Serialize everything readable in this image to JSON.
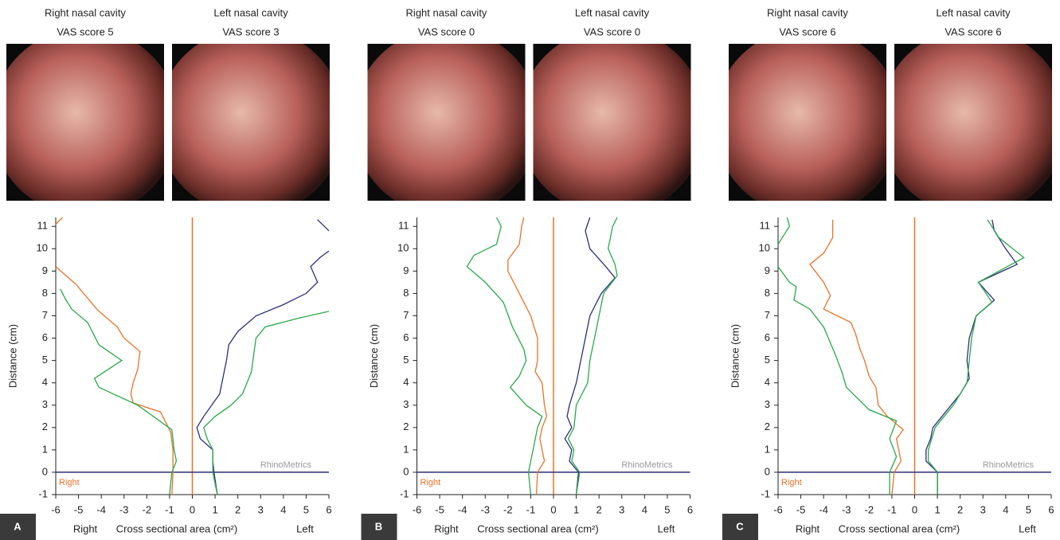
{
  "panels": [
    {
      "label": "A",
      "images": [
        [
          "Right nasal cavity",
          "VAS score 5"
        ],
        [
          "Left nasal cavity",
          "VAS score 3"
        ]
      ]
    },
    {
      "label": "B",
      "images": [
        [
          "Right nasal cavity",
          "VAS score 0"
        ],
        [
          "Left nasal cavity",
          "VAS score 0"
        ]
      ]
    },
    {
      "label": "C",
      "images": [
        [
          "Right nasal cavity",
          "VAS score 6"
        ],
        [
          "Left nasal cavity",
          "VAS score 6"
        ]
      ]
    }
  ],
  "chart_data": [
    {
      "type": "line",
      "ylabel": "Distance (cm)",
      "xlabel": "Cross sectional area (cm²)",
      "xlabel_left": "Right",
      "xlabel_right": "Left",
      "annotations": [
        "Right",
        "RhinoMetrics"
      ],
      "xlim": [
        -6,
        6
      ],
      "ylim": [
        -1,
        11.4
      ],
      "xticks": [
        -6,
        -5,
        -4,
        -3,
        -2,
        -1,
        0,
        1,
        2,
        3,
        4,
        5,
        6
      ],
      "yticks": [
        -1,
        0,
        1,
        2,
        3,
        4,
        5,
        6,
        7,
        8,
        9,
        10,
        11
      ],
      "series": [
        {
          "color": "#e8732a",
          "x": [
            -0.9,
            -0.85,
            -0.85,
            -0.95,
            -1.4,
            -2.6,
            -2.7,
            -2.6,
            -2.4,
            -2.3,
            -3.0,
            -3.3,
            -4.2,
            -5.1,
            -6,
            null,
            -6,
            -5.7
          ],
          "values": [
            -1,
            0,
            1,
            1.8,
            2.7,
            3.1,
            3.5,
            4,
            4.6,
            5.4,
            6,
            6.5,
            7.3,
            8.4,
            9.2,
            null,
            11.1,
            11.4
          ]
        },
        {
          "color": "#2aa84a",
          "x": [
            -1.0,
            -0.9,
            -0.7,
            -0.8,
            -0.9,
            -2.4,
            -4.1,
            -4.3,
            -3.1,
            -4.1,
            -4.6,
            -5.3,
            -5.6,
            -5.8
          ],
          "values": [
            -1,
            0,
            0.5,
            1,
            1.9,
            3,
            3.8,
            4.2,
            5,
            5.7,
            6.7,
            7.3,
            7.8,
            8.2
          ]
        },
        {
          "color": "#2b2f7a",
          "x": [
            1.1,
            0.95,
            0.9,
            0.9,
            0.35,
            0.2,
            0.5,
            1.2,
            1.4,
            1.5,
            1.6,
            2.0,
            2.8,
            4.0,
            5.0,
            5.5,
            5.2,
            5.6,
            6.0,
            null,
            6,
            5.5
          ],
          "values": [
            -1,
            0,
            0.5,
            1,
            1.5,
            2,
            2.5,
            3.5,
            4.5,
            5,
            5.7,
            6.3,
            7,
            7.5,
            8,
            8.5,
            9.2,
            9.6,
            9.9,
            null,
            10.8,
            11.3
          ]
        },
        {
          "color": "#2aa84a",
          "x": [
            1.1,
            0.9,
            0.9,
            0.65,
            0.5,
            1.0,
            1.7,
            2.2,
            2.6,
            2.7,
            2.8,
            3.2,
            4.7,
            6
          ],
          "values": [
            -1,
            0,
            1,
            1.5,
            2,
            2.5,
            3,
            3.5,
            4.5,
            5.3,
            6,
            6.5,
            6.9,
            7.2
          ]
        }
      ]
    },
    {
      "type": "line",
      "ylabel": "Distance (cm)",
      "xlabel": "Cross sectional area (cm²)",
      "xlabel_left": "Right",
      "xlabel_right": "Left",
      "annotations": [
        "Right",
        "RhinoMetrics"
      ],
      "xlim": [
        -6,
        6
      ],
      "ylim": [
        -1,
        11.4
      ],
      "xticks": [
        -6,
        -5,
        -4,
        -3,
        -2,
        -1,
        0,
        1,
        2,
        3,
        4,
        5,
        6
      ],
      "yticks": [
        -1,
        0,
        1,
        2,
        3,
        4,
        5,
        6,
        7,
        8,
        9,
        10,
        11
      ],
      "series": [
        {
          "color": "#e8732a",
          "x": [
            -0.75,
            -0.7,
            -0.4,
            -0.5,
            -0.6,
            -0.5,
            -0.3,
            -0.4,
            -0.5,
            -0.8,
            -0.7,
            -0.7,
            -1.0,
            -1.5,
            -2.0,
            -2.0,
            -1.5,
            -1.4,
            -1.3
          ],
          "values": [
            -1,
            0,
            0.5,
            1,
            1.5,
            2,
            2.5,
            3,
            4,
            4.5,
            5,
            6,
            7,
            8,
            9,
            9.5,
            10.2,
            11,
            11.4
          ]
        },
        {
          "color": "#2aa84a",
          "x": [
            -1.0,
            -1.1,
            -1.0,
            -0.9,
            -0.7,
            -0.5,
            -1.2,
            -1.9,
            -1.5,
            -1.2,
            -1.3,
            -1.8,
            -2.2,
            -3.0,
            -3.8,
            -3.5,
            -2.5,
            -2.3,
            -2.5
          ],
          "values": [
            -1,
            0,
            0.5,
            1,
            2,
            2.5,
            3,
            3.8,
            4.3,
            5,
            5.5,
            6.5,
            7.6,
            8.5,
            9.2,
            9.7,
            10.2,
            11,
            11.4
          ]
        },
        {
          "color": "#2b2f7a",
          "x": [
            1.0,
            1.1,
            0.7,
            0.8,
            0.5,
            0.8,
            0.6,
            0.7,
            1.0,
            1.2,
            1.4,
            1.6,
            2.1,
            2.7,
            2.3,
            1.6,
            1.4,
            1.6
          ],
          "values": [
            -1,
            0,
            0.5,
            1,
            1.5,
            2,
            2.5,
            3,
            4,
            5,
            6,
            7,
            8,
            8.7,
            9.2,
            10,
            10.8,
            11.4
          ]
        },
        {
          "color": "#2aa84a",
          "x": [
            1.0,
            1.15,
            0.8,
            0.9,
            0.65,
            0.9,
            1.0,
            1.5,
            1.6,
            1.8,
            2.0,
            2.2,
            2.8,
            2.7,
            2.4,
            2.6,
            2.8
          ],
          "values": [
            -1,
            0,
            0.5,
            1,
            1.5,
            2,
            3,
            4,
            5,
            6,
            7,
            8,
            8.8,
            9.3,
            10,
            11,
            11.4
          ]
        }
      ]
    },
    {
      "type": "line",
      "ylabel": "Distance (cm)",
      "xlabel": "Cross sectional area (cm²)",
      "xlabel_left": "Right",
      "xlabel_right": "Left",
      "annotations": [
        "Right",
        "RhinoMetrics"
      ],
      "xlim": [
        -6,
        6
      ],
      "ylim": [
        -1,
        11.4
      ],
      "xticks": [
        -6,
        -5,
        -4,
        -3,
        -2,
        -1,
        0,
        1,
        2,
        3,
        4,
        5,
        6
      ],
      "yticks": [
        -1,
        0,
        1,
        2,
        3,
        4,
        5,
        6,
        7,
        8,
        9,
        10,
        11
      ],
      "series": [
        {
          "color": "#e8732a",
          "x": [
            -1.0,
            -0.9,
            -0.6,
            -0.7,
            -0.8,
            -0.5,
            -1.2,
            -1.6,
            -1.7,
            -2.0,
            -2.2,
            -2.4,
            -2.6,
            -2.8,
            -4.0,
            -3.7,
            -4.0,
            -4.6,
            -4.0,
            -3.6,
            -3.6
          ],
          "values": [
            -1,
            0,
            0.5,
            1,
            1.5,
            1.9,
            2.5,
            3,
            3.8,
            4.3,
            5,
            5.5,
            6.2,
            6.7,
            7.3,
            7.9,
            8.5,
            9.3,
            9.8,
            10.5,
            11.3
          ]
        },
        {
          "color": "#2aa84a",
          "x": [
            -1.1,
            -1.1,
            -0.8,
            -1.1,
            -0.8,
            -2.0,
            -3.0,
            -3.2,
            -3.5,
            -4.0,
            -4.6,
            -5.3,
            -5.2,
            -5.5,
            -6.0,
            null,
            -6,
            -5.5,
            -5.6
          ],
          "values": [
            -1,
            0,
            0.7,
            1.5,
            2.3,
            2.8,
            3.8,
            4.5,
            5.3,
            6.5,
            7.3,
            7.7,
            8.3,
            8.5,
            9.2,
            null,
            10.2,
            11,
            11.4
          ]
        },
        {
          "color": "#2b2f7a",
          "x": [
            1.0,
            1.0,
            0.5,
            0.5,
            0.7,
            0.8,
            1.2,
            2.0,
            2.4,
            2.3,
            2.4,
            2.7,
            3.5,
            2.8,
            4.5,
            4.0,
            3.5,
            3.4
          ],
          "values": [
            -1,
            0,
            0.5,
            1,
            1.5,
            2,
            2.5,
            3.5,
            4.2,
            5,
            6,
            7,
            7.7,
            8.5,
            9.3,
            10,
            10.8,
            11.3
          ]
        },
        {
          "color": "#2aa84a",
          "x": [
            1.0,
            1.0,
            0.6,
            0.6,
            0.9,
            1.7,
            2.3,
            2.4,
            2.5,
            2.7,
            3.4,
            3.0,
            2.8,
            4.8,
            3.7,
            3.2
          ],
          "values": [
            -1,
            0,
            0.5,
            1,
            2,
            3,
            4,
            5,
            6,
            7,
            7.6,
            8.2,
            8.5,
            9.6,
            10.5,
            11.3
          ]
        }
      ]
    }
  ]
}
